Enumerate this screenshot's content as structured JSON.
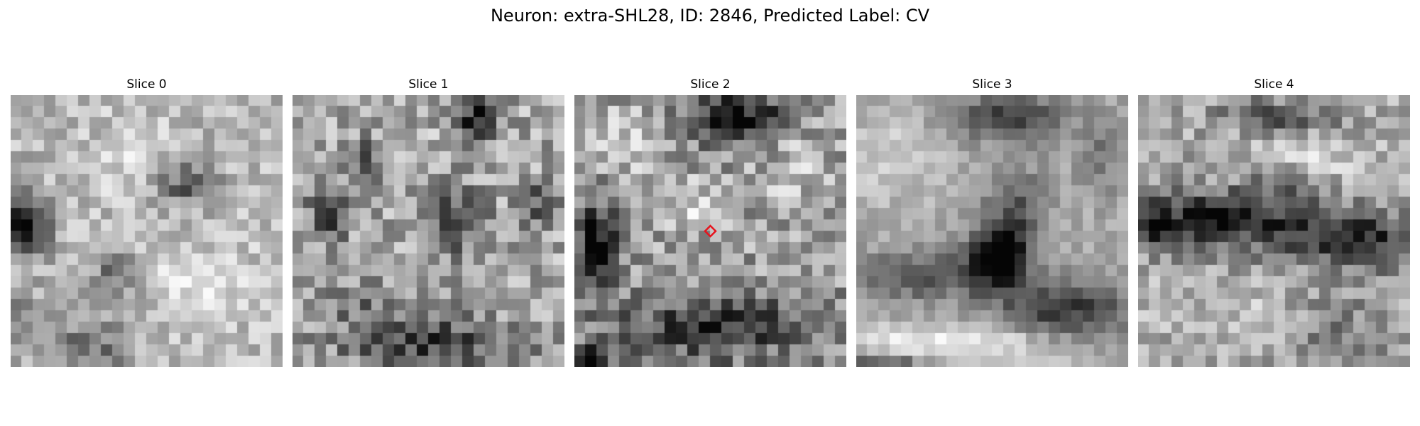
{
  "figure": {
    "suptitle": "Neuron: extra-SHL28, ID: 2846, Predicted Label: CV"
  },
  "panels": [
    {
      "title": "Slice 0",
      "colormap": "grayscale",
      "features": "dark blob at left-middle edge, mid-gray blobs upper-center and lower-left, bright center-right region",
      "marker": null
    },
    {
      "title": "Slice 1",
      "colormap": "grayscale",
      "features": "dark spot upper-right, several mid-dark clusters in middle row, dark band along bottom",
      "marker": null
    },
    {
      "title": "Slice 2",
      "colormap": "grayscale",
      "features": "dark region top-center, dark area at left edge, dark mottled lower half",
      "marker": {
        "shape": "diamond",
        "color": "#e6141e",
        "position": "center"
      }
    },
    {
      "title": "Slice 3",
      "colormap": "grayscale",
      "features": "smooth texture, dark blob center, dark diagonal band lower-right, bright bottom edge",
      "marker": null
    },
    {
      "title": "Slice 4",
      "colormap": "grayscale",
      "features": "dark horizontal band across middle, bright mottled upper and lower regions",
      "marker": null
    }
  ]
}
